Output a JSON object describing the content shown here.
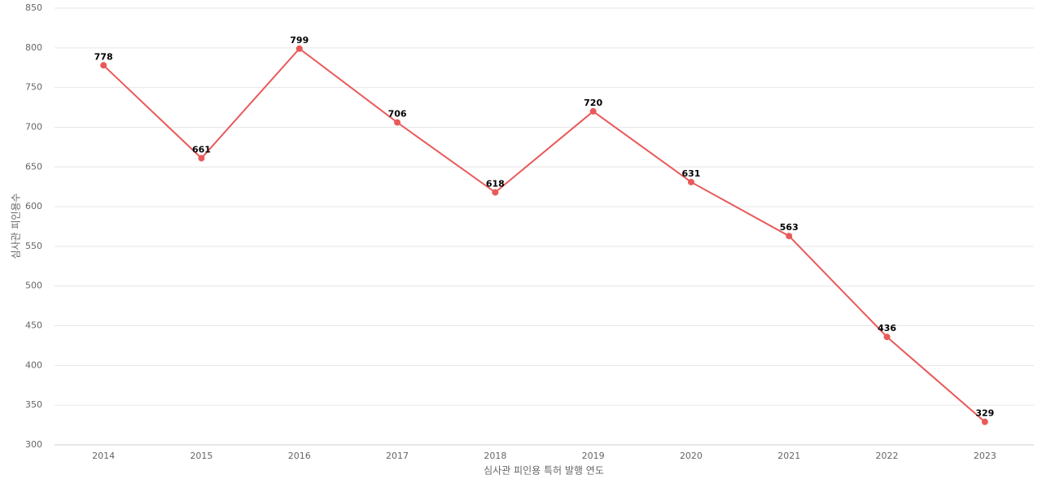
{
  "chart_data": {
    "type": "line",
    "x_label": "심사관 피인용 특허 발행 연도",
    "y_label": "심사관 피인용수",
    "categories": [
      "2014",
      "2015",
      "2016",
      "2017",
      "2018",
      "2019",
      "2020",
      "2021",
      "2022",
      "2023"
    ],
    "series": [
      {
        "name": "심사관 피인용수",
        "color": "#e85a5a",
        "values": [
          778,
          661,
          799,
          706,
          618,
          720,
          631,
          563,
          436,
          329
        ]
      }
    ],
    "ylim": [
      300,
      850
    ],
    "yticks": [
      300,
      350,
      400,
      450,
      500,
      550,
      600,
      650,
      700,
      750,
      800,
      850
    ],
    "grid": true,
    "data_labels": true
  }
}
